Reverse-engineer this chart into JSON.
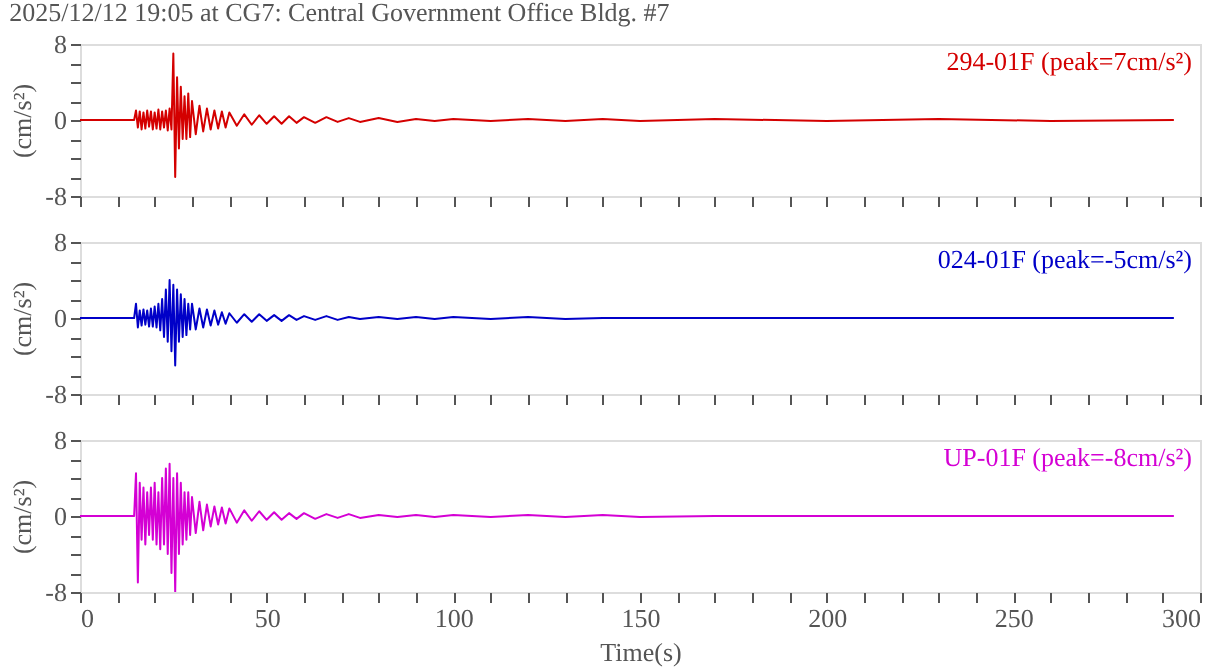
{
  "chart_data": [
    {
      "type": "line",
      "title": "2025/12/12 19:05 at CG7: Central Government Office Bldg. #7",
      "ylabel": "(cm/s²)",
      "annotations": [
        "294-01F (peak=7cm/s²)"
      ],
      "tick_labels": "y",
      "x": [
        0,
        14.5,
        15,
        15.5,
        16,
        16.5,
        17,
        17.5,
        18,
        18.5,
        19,
        19.5,
        20,
        20.5,
        21,
        21.5,
        22,
        22.5,
        23,
        23.5,
        24,
        24.5,
        25,
        25.5,
        26,
        26.5,
        27,
        27.5,
        28,
        28.5,
        29,
        29.5,
        30,
        31,
        32,
        33,
        34,
        35,
        36,
        37,
        38,
        39,
        40,
        42,
        44,
        46,
        48,
        50,
        52,
        54,
        56,
        58,
        60,
        63,
        66,
        69,
        72,
        75,
        80,
        85,
        90,
        95,
        100,
        110,
        120,
        130,
        140,
        150,
        170,
        200,
        230,
        260,
        293
      ],
      "series": [
        {
          "color": "#d40000",
          "values": [
            0,
            0,
            1.0,
            -0.8,
            0.9,
            -1.0,
            0.8,
            -0.9,
            1.0,
            -0.7,
            0.9,
            -1.0,
            0.8,
            -0.9,
            1.1,
            -1.0,
            0.9,
            -0.8,
            1.0,
            -1.1,
            1.2,
            -1.0,
            7.0,
            -6.0,
            4.5,
            -3.0,
            3.5,
            -2.0,
            2.5,
            -2.0,
            2.8,
            -1.8,
            2.0,
            -1.5,
            1.5,
            -1.2,
            1.2,
            -1.0,
            1.0,
            -0.9,
            0.9,
            -0.8,
            0.8,
            -0.6,
            0.6,
            -0.5,
            0.5,
            -0.4,
            0.4,
            -0.4,
            0.4,
            -0.3,
            0.3,
            -0.3,
            0.3,
            -0.2,
            0.2,
            -0.2,
            0.2,
            -0.2,
            0.1,
            -0.1,
            0.1,
            -0.1,
            0.1,
            -0.1,
            0.1,
            -0.1,
            0.1,
            -0.1,
            0.1,
            -0.1,
            0
          ]
        }
      ],
      "xlim": [
        0,
        300
      ],
      "ylim": [
        -8,
        8
      ],
      "xticks": [
        0,
        {
          "value": 10,
          "label": null
        },
        {
          "value": 20,
          "label": null
        },
        {
          "value": 30,
          "label": null
        },
        {
          "value": 40,
          "label": null
        },
        50,
        {
          "value": 60,
          "label": null
        },
        {
          "value": 70,
          "label": null
        },
        {
          "value": 80,
          "label": null
        },
        {
          "value": 90,
          "label": null
        },
        100,
        {
          "value": 110,
          "label": null
        },
        {
          "value": 120,
          "label": null
        },
        {
          "value": 130,
          "label": null
        },
        {
          "value": 140,
          "label": null
        },
        150,
        {
          "value": 160,
          "label": null
        },
        {
          "value": 170,
          "label": null
        },
        {
          "value": 180,
          "label": null
        },
        {
          "value": 190,
          "label": null
        },
        200,
        {
          "value": 210,
          "label": null
        },
        {
          "value": 220,
          "label": null
        },
        {
          "value": 230,
          "label": null
        },
        {
          "value": 240,
          "label": null
        },
        250,
        {
          "value": 260,
          "label": null
        },
        {
          "value": 270,
          "label": null
        },
        {
          "value": 280,
          "label": null
        },
        {
          "value": 290,
          "label": null
        },
        300
      ],
      "yticks": [
        -8,
        {
          "value": -6,
          "label": null
        },
        {
          "value": -4,
          "label": null
        },
        {
          "value": -2,
          "label": null
        },
        0,
        {
          "value": 2,
          "label": null
        },
        {
          "value": 4,
          "label": null
        },
        {
          "value": 6,
          "label": null
        },
        8
      ]
    },
    {
      "type": "line",
      "ylabel": "(cm/s²)",
      "annotations": [
        "024-01F (peak=-5cm/s²)"
      ],
      "tick_labels": "y",
      "x": [
        0,
        14.5,
        15,
        15.5,
        16,
        16.5,
        17,
        17.5,
        18,
        18.5,
        19,
        19.5,
        20,
        20.5,
        21,
        21.5,
        22,
        22.5,
        23,
        23.5,
        24,
        24.5,
        25,
        25.5,
        26,
        26.5,
        27,
        27.5,
        28,
        28.5,
        29,
        29.5,
        30,
        31,
        32,
        33,
        34,
        35,
        36,
        37,
        38,
        39,
        40,
        42,
        44,
        46,
        48,
        50,
        52,
        54,
        56,
        58,
        60,
        63,
        66,
        69,
        72,
        75,
        80,
        85,
        90,
        95,
        100,
        110,
        120,
        130,
        140,
        150,
        170,
        200,
        230,
        260,
        293
      ],
      "series": [
        {
          "color": "#0000c8",
          "values": [
            0,
            0,
            1.5,
            -1.0,
            0.8,
            -0.8,
            0.9,
            -0.7,
            0.8,
            -0.9,
            1.0,
            -0.9,
            1.2,
            -1.0,
            1.5,
            -1.3,
            2.0,
            -2.0,
            3.0,
            -2.5,
            4.0,
            -3.5,
            3.5,
            -5.0,
            3.0,
            -2.5,
            2.5,
            -2.0,
            2.0,
            -1.8,
            1.5,
            -1.2,
            1.5,
            -1.2,
            1.0,
            -1.0,
            0.9,
            -0.8,
            0.8,
            -0.7,
            0.6,
            -0.6,
            0.5,
            -0.5,
            0.4,
            -0.4,
            0.4,
            -0.3,
            0.3,
            -0.3,
            0.3,
            -0.2,
            0.2,
            -0.2,
            0.2,
            -0.2,
            0.1,
            -0.1,
            0.1,
            -0.1,
            0.1,
            -0.1,
            0.1,
            -0.1,
            0.1,
            -0.1,
            0,
            0,
            0,
            0,
            0,
            0,
            0
          ]
        }
      ],
      "xlim": [
        0,
        300
      ],
      "ylim": [
        -8,
        8
      ],
      "xticks": [
        0,
        {
          "value": 10,
          "label": null
        },
        {
          "value": 20,
          "label": null
        },
        {
          "value": 30,
          "label": null
        },
        {
          "value": 40,
          "label": null
        },
        50,
        {
          "value": 60,
          "label": null
        },
        {
          "value": 70,
          "label": null
        },
        {
          "value": 80,
          "label": null
        },
        {
          "value": 90,
          "label": null
        },
        100,
        {
          "value": 110,
          "label": null
        },
        {
          "value": 120,
          "label": null
        },
        {
          "value": 130,
          "label": null
        },
        {
          "value": 140,
          "label": null
        },
        150,
        {
          "value": 160,
          "label": null
        },
        {
          "value": 170,
          "label": null
        },
        {
          "value": 180,
          "label": null
        },
        {
          "value": 190,
          "label": null
        },
        200,
        {
          "value": 210,
          "label": null
        },
        {
          "value": 220,
          "label": null
        },
        {
          "value": 230,
          "label": null
        },
        {
          "value": 240,
          "label": null
        },
        250,
        {
          "value": 260,
          "label": null
        },
        {
          "value": 270,
          "label": null
        },
        {
          "value": 280,
          "label": null
        },
        {
          "value": 290,
          "label": null
        },
        300
      ],
      "yticks": [
        -8,
        {
          "value": -6,
          "label": null
        },
        {
          "value": -4,
          "label": null
        },
        {
          "value": -2,
          "label": null
        },
        0,
        {
          "value": 2,
          "label": null
        },
        {
          "value": 4,
          "label": null
        },
        {
          "value": 6,
          "label": null
        },
        8
      ]
    },
    {
      "type": "line",
      "ylabel": "(cm/s²)",
      "xlabel": "Time(s)",
      "annotations": [
        "UP-01F (peak=-8cm/s²)"
      ],
      "x": [
        0,
        14.5,
        15,
        15.5,
        16,
        16.5,
        17,
        17.5,
        18,
        18.5,
        19,
        19.5,
        20,
        20.5,
        21,
        21.5,
        22,
        22.5,
        23,
        23.5,
        24,
        24.5,
        25,
        25.5,
        26,
        26.5,
        27,
        27.5,
        28,
        28.5,
        29,
        29.5,
        30,
        31,
        32,
        33,
        34,
        35,
        36,
        37,
        38,
        39,
        40,
        42,
        44,
        46,
        48,
        50,
        52,
        54,
        56,
        58,
        60,
        63,
        66,
        69,
        72,
        75,
        80,
        85,
        90,
        95,
        100,
        110,
        120,
        130,
        140,
        150,
        170,
        200,
        230,
        260,
        293
      ],
      "series": [
        {
          "color": "#d400d4",
          "values": [
            0,
            0,
            4.5,
            -7.0,
            3.5,
            -2.5,
            3.0,
            -3.0,
            2.5,
            -2.0,
            3.0,
            -2.5,
            3.5,
            -3.0,
            2.5,
            -3.5,
            4.0,
            -3.0,
            5.0,
            -4.0,
            5.5,
            -6.0,
            4.0,
            -8.0,
            4.5,
            -4.0,
            3.5,
            -3.0,
            2.5,
            -2.5,
            2.5,
            -2.0,
            2.0,
            -1.8,
            1.5,
            -1.5,
            1.2,
            -1.1,
            1.0,
            -0.9,
            0.9,
            -0.8,
            0.8,
            -0.7,
            0.6,
            -0.5,
            0.5,
            -0.4,
            0.4,
            -0.4,
            0.3,
            -0.3,
            0.3,
            -0.3,
            0.2,
            -0.2,
            0.2,
            -0.2,
            0.1,
            -0.1,
            0.1,
            -0.1,
            0.1,
            -0.1,
            0.1,
            -0.1,
            0.1,
            -0.1,
            0,
            0,
            0,
            0,
            0
          ]
        }
      ],
      "xlim": [
        0,
        300
      ],
      "ylim": [
        -8,
        8
      ],
      "xticks": [
        0,
        {
          "value": 10,
          "label": null
        },
        {
          "value": 20,
          "label": null
        },
        {
          "value": 30,
          "label": null
        },
        {
          "value": 40,
          "label": null
        },
        50,
        {
          "value": 60,
          "label": null
        },
        {
          "value": 70,
          "label": null
        },
        {
          "value": 80,
          "label": null
        },
        {
          "value": 90,
          "label": null
        },
        100,
        {
          "value": 110,
          "label": null
        },
        {
          "value": 120,
          "label": null
        },
        {
          "value": 130,
          "label": null
        },
        {
          "value": 140,
          "label": null
        },
        150,
        {
          "value": 160,
          "label": null
        },
        {
          "value": 170,
          "label": null
        },
        {
          "value": 180,
          "label": null
        },
        {
          "value": 190,
          "label": null
        },
        200,
        {
          "value": 210,
          "label": null
        },
        {
          "value": 220,
          "label": null
        },
        {
          "value": 230,
          "label": null
        },
        {
          "value": 240,
          "label": null
        },
        250,
        {
          "value": 260,
          "label": null
        },
        {
          "value": 270,
          "label": null
        },
        {
          "value": 280,
          "label": null
        },
        {
          "value": 290,
          "label": null
        },
        300
      ],
      "yticks": [
        -8,
        {
          "value": -6,
          "label": null
        },
        {
          "value": -4,
          "label": null
        },
        {
          "value": -2,
          "label": null
        },
        0,
        {
          "value": 2,
          "label": null
        },
        {
          "value": 4,
          "label": null
        },
        {
          "value": 6,
          "label": null
        },
        8
      ]
    }
  ]
}
